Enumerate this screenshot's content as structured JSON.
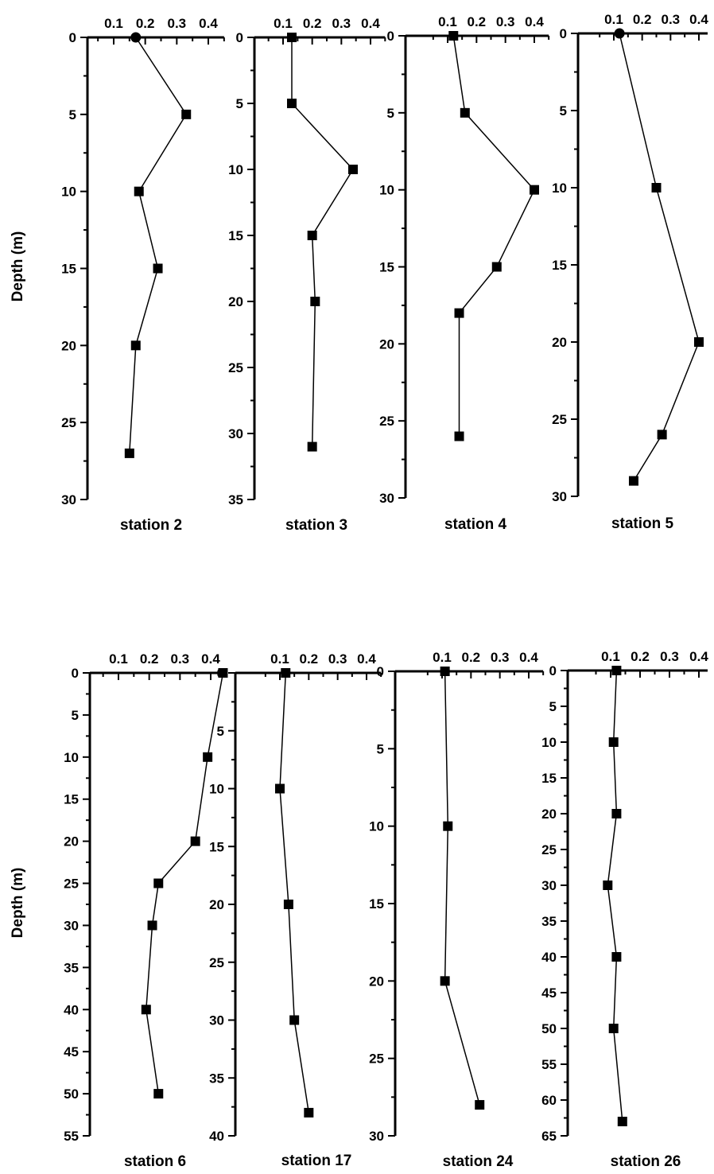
{
  "figure": {
    "ylabel_top": "Depth (m)",
    "ylabel_bottom": "Depth (m)"
  },
  "chart_data": [
    {
      "type": "line",
      "title": "station 2",
      "x_ticks": [
        "0.1",
        "0.2",
        "0.3",
        "0.4"
      ],
      "xlim": [
        0.05,
        0.45
      ],
      "y_ticks": [
        "0",
        "5",
        "10",
        "15",
        "20",
        "25",
        "30"
      ],
      "ylim": [
        0,
        30
      ],
      "x": [
        0.17,
        0.33,
        0.18,
        0.24,
        0.17,
        0.15
      ],
      "y": [
        0,
        5,
        10,
        15,
        20,
        27
      ],
      "markers": [
        "circle",
        "square",
        "square",
        "square",
        "square",
        "square"
      ]
    },
    {
      "type": "line",
      "title": "station 3",
      "x_ticks": [
        "0.1",
        "0.2",
        "0.3",
        "0.4"
      ],
      "xlim": [
        0.05,
        0.45
      ],
      "y_ticks": [
        "0",
        "5",
        "10",
        "15",
        "20",
        "25",
        "30",
        "35"
      ],
      "ylim": [
        0,
        35
      ],
      "x": [
        0.13,
        0.13,
        0.34,
        0.2,
        0.21,
        0.2
      ],
      "y": [
        0,
        5,
        10,
        15,
        20,
        31
      ],
      "markers": [
        "square",
        "square",
        "square",
        "square",
        "square",
        "square"
      ]
    },
    {
      "type": "line",
      "title": "station 4",
      "x_ticks": [
        "0.1",
        "0.2",
        "0.3",
        "0.4"
      ],
      "xlim": [
        0.05,
        0.45
      ],
      "y_ticks": [
        "0",
        "5",
        "10",
        "15",
        "20",
        "25",
        "30"
      ],
      "ylim": [
        0,
        30
      ],
      "x": [
        0.12,
        0.16,
        0.4,
        0.27,
        0.14,
        0.14
      ],
      "y": [
        0,
        5,
        10,
        15,
        18,
        26
      ],
      "markers": [
        "square",
        "square",
        "square",
        "square",
        "square",
        "square"
      ]
    },
    {
      "type": "line",
      "title": "station 5",
      "x_ticks": [
        "0.1",
        "0.2",
        "0.3",
        "0.4"
      ],
      "xlim": [
        0.05,
        0.45
      ],
      "y_ticks": [
        "0",
        "5",
        "10",
        "15",
        "20",
        "25",
        "30"
      ],
      "ylim": [
        0,
        30
      ],
      "x": [
        0.12,
        0.25,
        0.4,
        0.27,
        0.17
      ],
      "y": [
        0,
        10,
        20,
        26,
        29
      ],
      "markers": [
        "circle",
        "square",
        "square",
        "square",
        "square"
      ]
    },
    {
      "type": "line",
      "title": "station 6",
      "x_ticks": [
        "0.1",
        "0.2",
        "0.3",
        "0.4"
      ],
      "xlim": [
        0.05,
        0.45
      ],
      "y_ticks": [
        "0",
        "5",
        "10",
        "15",
        "20",
        "25",
        "30",
        "35",
        "40",
        "45",
        "50",
        "55"
      ],
      "ylim": [
        0,
        55
      ],
      "x": [
        0.44,
        0.39,
        0.35,
        0.23,
        0.21,
        0.19,
        0.23
      ],
      "y": [
        0,
        10,
        20,
        25,
        30,
        40,
        50
      ],
      "markers": [
        "square",
        "square",
        "square",
        "square",
        "square",
        "square",
        "square"
      ]
    },
    {
      "type": "line",
      "title": "station 17",
      "x_ticks": [
        "0.1",
        "0.2",
        "0.3",
        "0.4"
      ],
      "xlim": [
        0.05,
        0.45
      ],
      "y_ticks": [
        "0",
        "5",
        "10",
        "15",
        "20",
        "25",
        "30",
        "35",
        "40"
      ],
      "ylim": [
        0,
        40
      ],
      "x": [
        0.12,
        0.1,
        0.13,
        0.15,
        0.2
      ],
      "y": [
        0,
        10,
        20,
        30,
        38
      ],
      "markers": [
        "square",
        "square",
        "square",
        "square",
        "square"
      ]
    },
    {
      "type": "line",
      "title": "station 24",
      "x_ticks": [
        "0.1",
        "0.2",
        "0.3",
        "0.4"
      ],
      "xlim": [
        0.05,
        0.45
      ],
      "y_ticks": [
        "0",
        "5",
        "10",
        "15",
        "20",
        "25",
        "30"
      ],
      "ylim": [
        0,
        30
      ],
      "x": [
        0.11,
        0.12,
        0.11,
        0.23
      ],
      "y": [
        0,
        10,
        20,
        28
      ],
      "markers": [
        "square",
        "square",
        "square",
        "square"
      ]
    },
    {
      "type": "line",
      "title": "station 26",
      "x_ticks": [
        "0.1",
        "0.2",
        "0.3",
        "0.4"
      ],
      "xlim": [
        0.05,
        0.45
      ],
      "y_ticks": [
        "0",
        "5",
        "10",
        "15",
        "20",
        "25",
        "30",
        "35",
        "40",
        "45",
        "50",
        "55",
        "60",
        "65"
      ],
      "ylim": [
        0,
        65
      ],
      "x": [
        0.12,
        0.11,
        0.12,
        0.09,
        0.12,
        0.11,
        0.14
      ],
      "y": [
        0,
        10,
        20,
        30,
        40,
        50,
        63
      ],
      "markers": [
        "square",
        "square",
        "square",
        "square",
        "square",
        "square",
        "square"
      ]
    }
  ]
}
